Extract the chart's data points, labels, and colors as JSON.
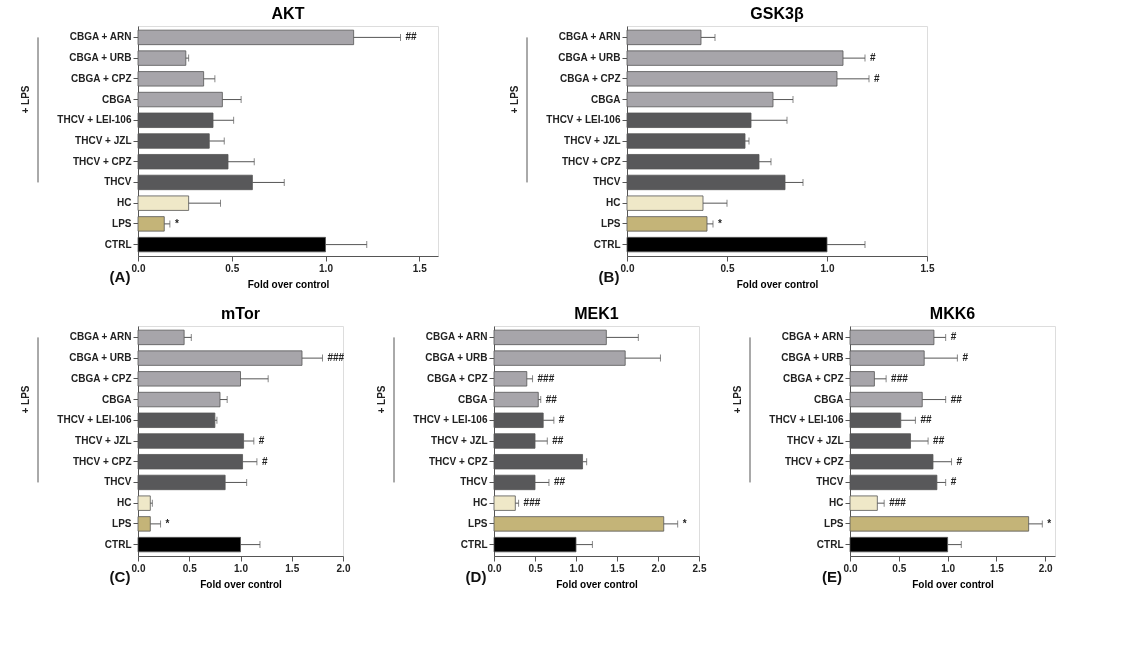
{
  "chart_data": [
    {
      "type": "bar",
      "orientation": "horizontal",
      "title": "AKT",
      "xlabel": "Fold over control",
      "xlim": [
        0,
        1.6
      ],
      "xticks": [
        {
          "value": 0,
          "label": "0.0"
        },
        {
          "value": 0.5,
          "label": "0.5"
        },
        {
          "value": 1,
          "label": "1.0"
        },
        {
          "value": 1.5,
          "label": "1.5"
        }
      ],
      "grid": false,
      "categories": [
        "CBGA + ARN",
        "CBGA + URB",
        "CBGA + CPZ",
        "CBGA",
        "THCV + LEI-106",
        "THCV + JZL",
        "THCV + CPZ",
        "THCV",
        "HC",
        "LPS",
        "CTRL"
      ],
      "values": [
        1.15,
        0.255,
        0.35,
        0.45,
        0.4,
        0.38,
        0.48,
        0.61,
        0.27,
        0.14,
        1.0
      ],
      "errors": [
        [
          1.15,
          1.4
        ],
        [
          0.255,
          0.27
        ],
        [
          0.35,
          0.41
        ],
        [
          0.45,
          0.55
        ],
        [
          0.4,
          0.51
        ],
        [
          0.38,
          0.46
        ],
        [
          0.48,
          0.62
        ],
        [
          0.61,
          0.78
        ],
        [
          0.27,
          0.44
        ],
        [
          0.14,
          0.17
        ],
        [
          1.0,
          1.22
        ]
      ],
      "colors": [
        "#a7a5aa",
        "#a7a5aa",
        "#a7a5aa",
        "#a7a5aa",
        "#58585a",
        "#58585a",
        "#58585a",
        "#58585a",
        "#efe8c8",
        "#c4b478",
        "#000000"
      ],
      "annotations": [
        "+ LPS",
        "(A)",
        {
          "text": "##",
          "x": 1.4,
          "y": "CBGA + ARN"
        },
        {
          "text": "*",
          "x": 0.17,
          "y": "LPS"
        }
      ]
    },
    {
      "type": "bar",
      "orientation": "horizontal",
      "title": "GSK3β",
      "xlabel": "Fold over control",
      "xlim": [
        0,
        1.5
      ],
      "xticks": [
        {
          "value": 0,
          "label": "0.0"
        },
        {
          "value": 0.5,
          "label": "0.5"
        },
        {
          "value": 1,
          "label": "1.0"
        },
        {
          "value": 1.5,
          "label": "1.5"
        }
      ],
      "grid": false,
      "categories": [
        "CBGA + ARN",
        "CBGA + URB",
        "CBGA + CPZ",
        "CBGA",
        "THCV + LEI-106",
        "THCV + JZL",
        "THCV + CPZ",
        "THCV",
        "HC",
        "LPS",
        "CTRL"
      ],
      "values": [
        0.37,
        1.08,
        1.05,
        0.73,
        0.62,
        0.59,
        0.66,
        0.79,
        0.38,
        0.4,
        1.0
      ],
      "errors": [
        [
          0.37,
          0.44
        ],
        [
          1.08,
          1.19
        ],
        [
          1.05,
          1.21
        ],
        [
          0.73,
          0.83
        ],
        [
          0.62,
          0.8
        ],
        [
          0.59,
          0.61
        ],
        [
          0.66,
          0.72
        ],
        [
          0.79,
          0.88
        ],
        [
          0.38,
          0.5
        ],
        [
          0.4,
          0.43
        ],
        [
          1.0,
          1.19
        ]
      ],
      "colors": [
        "#a7a5aa",
        "#a7a5aa",
        "#a7a5aa",
        "#a7a5aa",
        "#58585a",
        "#58585a",
        "#58585a",
        "#58585a",
        "#efe8c8",
        "#c4b478",
        "#000000"
      ],
      "annotations": [
        "+ LPS",
        "(B)",
        {
          "text": "#",
          "x": 1.19,
          "y": "CBGA + URB"
        },
        {
          "text": "#",
          "x": 1.21,
          "y": "CBGA + CPZ"
        },
        {
          "text": "*",
          "x": 0.43,
          "y": "LPS"
        }
      ]
    },
    {
      "type": "bar",
      "orientation": "horizontal",
      "title": "mTor",
      "xlabel": "Fold over control",
      "xlim": [
        0,
        2.0
      ],
      "xticks": [
        {
          "value": 0,
          "label": "0.0"
        },
        {
          "value": 0.5,
          "label": "0.5"
        },
        {
          "value": 1,
          "label": "1.0"
        },
        {
          "value": 1.5,
          "label": "1.5"
        },
        {
          "value": 2,
          "label": "2.0"
        }
      ],
      "grid": false,
      "categories": [
        "CBGA + ARN",
        "CBGA + URB",
        "CBGA + CPZ",
        "CBGA",
        "THCV + LEI-106",
        "THCV + JZL",
        "THCV + CPZ",
        "THCV",
        "HC",
        "LPS",
        "CTRL"
      ],
      "values": [
        0.45,
        1.6,
        1.0,
        0.8,
        0.75,
        1.03,
        1.02,
        0.85,
        0.12,
        0.12,
        1.0
      ],
      "errors": [
        [
          0.45,
          0.52
        ],
        [
          1.6,
          1.8
        ],
        [
          1.0,
          1.27
        ],
        [
          0.8,
          0.87
        ],
        [
          0.75,
          0.77
        ],
        [
          1.03,
          1.13
        ],
        [
          1.02,
          1.16
        ],
        [
          0.85,
          1.06
        ],
        [
          0.12,
          0.14
        ],
        [
          0.12,
          0.22
        ],
        [
          1.0,
          1.19
        ]
      ],
      "colors": [
        "#a7a5aa",
        "#a7a5aa",
        "#a7a5aa",
        "#a7a5aa",
        "#58585a",
        "#58585a",
        "#58585a",
        "#58585a",
        "#efe8c8",
        "#c4b478",
        "#000000"
      ],
      "annotations": [
        "+ LPS",
        "(C)",
        {
          "text": "###",
          "x": 1.8,
          "y": "CBGA + URB"
        },
        {
          "text": "#",
          "x": 1.13,
          "y": "THCV + JZL"
        },
        {
          "text": "#",
          "x": 1.16,
          "y": "THCV + CPZ"
        },
        {
          "text": "*",
          "x": 0.22,
          "y": "LPS"
        }
      ]
    },
    {
      "type": "bar",
      "orientation": "horizontal",
      "title": "MEK1",
      "xlabel": "Fold over control",
      "xlim": [
        0,
        2.5
      ],
      "xticks": [
        {
          "value": 0,
          "label": "0.0"
        },
        {
          "value": 0.5,
          "label": "0.5"
        },
        {
          "value": 1,
          "label": "1.0"
        },
        {
          "value": 1.5,
          "label": "1.5"
        },
        {
          "value": 2,
          "label": "2.0"
        },
        2.5
      ],
      "grid": false,
      "categories": [
        "CBGA + ARN",
        "CBGA + URB",
        "CBGA + CPZ",
        "CBGA",
        "THCV + LEI-106",
        "THCV + JZL",
        "THCV + CPZ",
        "THCV",
        "HC",
        "LPS",
        "CTRL"
      ],
      "values": [
        1.37,
        1.6,
        0.4,
        0.54,
        0.6,
        0.5,
        1.08,
        0.5,
        0.26,
        2.07,
        1.0
      ],
      "errors": [
        [
          1.37,
          1.76
        ],
        [
          1.6,
          2.03
        ],
        [
          0.4,
          0.47
        ],
        [
          0.54,
          0.57
        ],
        [
          0.6,
          0.73
        ],
        [
          0.5,
          0.65
        ],
        [
          1.08,
          1.13
        ],
        [
          0.5,
          0.67
        ],
        [
          0.26,
          0.3
        ],
        [
          2.07,
          2.24
        ],
        [
          1.0,
          1.2
        ]
      ],
      "colors": [
        "#a7a5aa",
        "#a7a5aa",
        "#a7a5aa",
        "#a7a5aa",
        "#58585a",
        "#58585a",
        "#58585a",
        "#58585a",
        "#efe8c8",
        "#c4b478",
        "#000000"
      ],
      "annotations": [
        "+ LPS",
        "(D)",
        {
          "text": "###",
          "x": 0.47,
          "y": "CBGA + CPZ"
        },
        {
          "text": "##",
          "x": 0.57,
          "y": "CBGA"
        },
        {
          "text": "#",
          "x": 0.73,
          "y": "THCV + LEI-106"
        },
        {
          "text": "##",
          "x": 0.65,
          "y": "THCV + JZL"
        },
        {
          "text": "##",
          "x": 0.67,
          "y": "THCV"
        },
        {
          "text": "###",
          "x": 0.3,
          "y": "HC"
        },
        {
          "text": "*",
          "x": 2.24,
          "y": "LPS"
        }
      ]
    },
    {
      "type": "bar",
      "orientation": "horizontal",
      "title": "MKK6",
      "xlabel": "Fold over control",
      "xlim": [
        0,
        2.1
      ],
      "xticks": [
        {
          "value": 0,
          "label": "0.0"
        },
        {
          "value": 0.5,
          "label": "0.5"
        },
        {
          "value": 1,
          "label": "1.0"
        },
        {
          "value": 1.5,
          "label": "1.5"
        },
        {
          "value": 2,
          "label": "2.0"
        }
      ],
      "grid": false,
      "categories": [
        "CBGA + ARN",
        "CBGA + URB",
        "CBGA + CPZ",
        "CBGA",
        "THCV + LEI-106",
        "THCV + JZL",
        "THCV + CPZ",
        "THCV",
        "HC",
        "LPS",
        "CTRL"
      ],
      "values": [
        0.86,
        0.76,
        0.25,
        0.74,
        0.52,
        0.62,
        0.85,
        0.89,
        0.28,
        1.83,
        1.0
      ],
      "errors": [
        [
          0.86,
          0.98
        ],
        [
          0.76,
          1.1
        ],
        [
          0.25,
          0.37
        ],
        [
          0.74,
          0.98
        ],
        [
          0.52,
          0.67
        ],
        [
          0.62,
          0.8
        ],
        [
          0.85,
          1.04
        ],
        [
          0.89,
          0.98
        ],
        [
          0.28,
          0.35
        ],
        [
          1.83,
          1.97
        ],
        [
          1.0,
          1.14
        ]
      ],
      "colors": [
        "#a7a5aa",
        "#a7a5aa",
        "#a7a5aa",
        "#a7a5aa",
        "#58585a",
        "#58585a",
        "#58585a",
        "#58585a",
        "#efe8c8",
        "#c4b478",
        "#000000"
      ],
      "annotations": [
        "+ LPS",
        "(E)",
        {
          "text": "#",
          "x": 0.98,
          "y": "CBGA + ARN"
        },
        {
          "text": "#",
          "x": 1.1,
          "y": "CBGA + URB"
        },
        {
          "text": "###",
          "x": 0.37,
          "y": "CBGA + CPZ"
        },
        {
          "text": "##",
          "x": 0.98,
          "y": "CBGA"
        },
        {
          "text": "##",
          "x": 0.67,
          "y": "THCV + LEI-106"
        },
        {
          "text": "##",
          "x": 0.8,
          "y": "THCV + JZL"
        },
        {
          "text": "#",
          "x": 1.04,
          "y": "THCV + CPZ"
        },
        {
          "text": "#",
          "x": 0.98,
          "y": "THCV"
        },
        {
          "text": "###",
          "x": 0.35,
          "y": "HC"
        },
        {
          "text": "*",
          "x": 1.97,
          "y": "LPS"
        }
      ]
    }
  ]
}
